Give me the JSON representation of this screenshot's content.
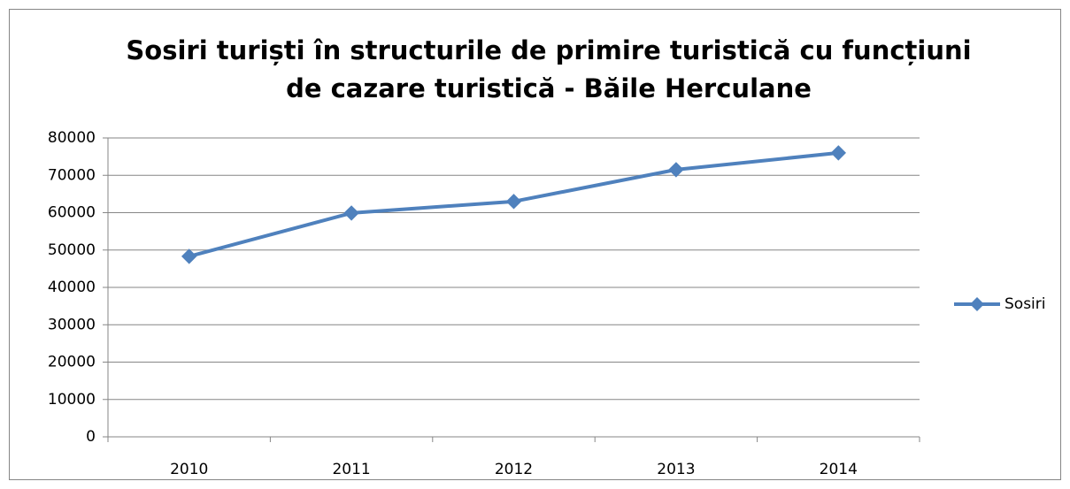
{
  "chart_data": {
    "type": "line",
    "title": "Sosiri turiști în structurile de primire turistică cu funcțiuni de cazare turistică - Băile Herculane",
    "categories": [
      "2010",
      "2011",
      "2012",
      "2013",
      "2014"
    ],
    "series": [
      {
        "name": "Sosiri",
        "color": "#4f81bd",
        "values": [
          48300,
          59900,
          63000,
          71500,
          76000
        ]
      }
    ],
    "ylim": [
      0,
      80000
    ],
    "yticks": [
      0,
      10000,
      20000,
      30000,
      40000,
      50000,
      60000,
      70000,
      80000
    ],
    "grid": true,
    "legend": "right"
  }
}
